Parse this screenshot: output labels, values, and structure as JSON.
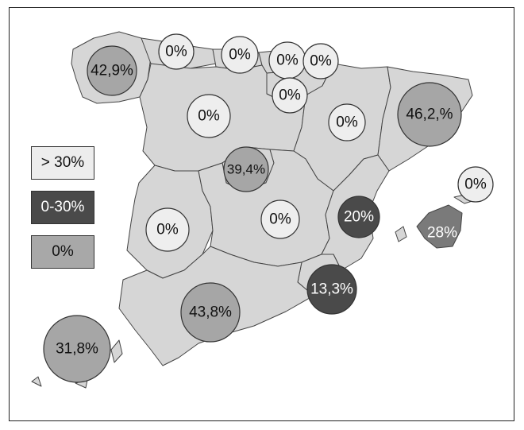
{
  "legend": [
    {
      "label": "> 30%",
      "fill": "#ededed",
      "text_color": "#111111"
    },
    {
      "label": "0-30%",
      "fill": "#4a4a4a",
      "text_color": "#ffffff"
    },
    {
      "label": "0%",
      "fill": "#a8a8a8",
      "text_color": "#111111"
    }
  ],
  "colors": {
    "land": "#d6d6d6",
    "light_land": "#e2e2e2",
    "balearic": "#7a7a7a",
    "circle_light": "#eeeeee",
    "circle_mid": "#a6a6a6",
    "circle_dark": "#4a4a4a"
  },
  "regions": [
    {
      "name": "Galicia",
      "label": "42,9%",
      "shade": "mid"
    },
    {
      "name": "Asturias",
      "label": "0%",
      "shade": "light"
    },
    {
      "name": "Cantabria",
      "label": "0%",
      "shade": "light"
    },
    {
      "name": "País Vasco",
      "label": "0%",
      "shade": "light"
    },
    {
      "name": "Navarra",
      "label": "0%",
      "shade": "light"
    },
    {
      "name": "La Rioja",
      "label": "0%",
      "shade": "light"
    },
    {
      "name": "Castilla y León",
      "label": "0%",
      "shade": "light"
    },
    {
      "name": "Aragón",
      "label": "0%",
      "shade": "light"
    },
    {
      "name": "Cataluña",
      "label": "46,2,%",
      "shade": "mid"
    },
    {
      "name": "Madrid",
      "label": "39,4%",
      "shade": "mid"
    },
    {
      "name": "Baleares",
      "label": "0%",
      "shade": "light"
    },
    {
      "name": "Baleares (Mallorca)",
      "label": "28%",
      "shade": "none"
    },
    {
      "name": "Comunidad Valenciana",
      "label": "20%",
      "shade": "dark"
    },
    {
      "name": "Extremadura",
      "label": "0%",
      "shade": "light"
    },
    {
      "name": "Castilla-La Mancha",
      "label": "0%",
      "shade": "light"
    },
    {
      "name": "Murcia",
      "label": "13,3%",
      "shade": "dark"
    },
    {
      "name": "Andalucía",
      "label": "43,8%",
      "shade": "mid"
    },
    {
      "name": "Canarias",
      "label": "31,8%",
      "shade": "mid"
    }
  ]
}
